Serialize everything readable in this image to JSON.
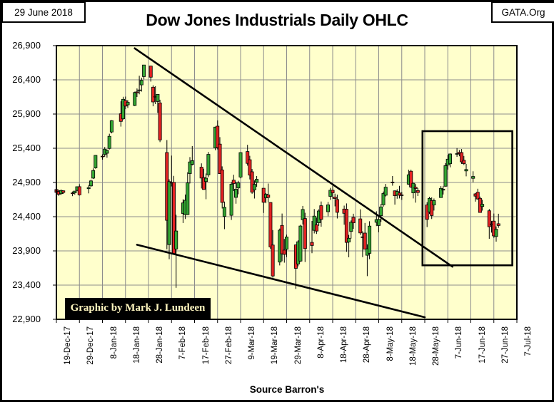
{
  "header": {
    "date_label": "29 June 2018",
    "site_label": "GATA.Org",
    "title": "Dow Jones Industrials Daily OHLC"
  },
  "footer": {
    "source": "Source Barron's"
  },
  "watermark": "Graphic by Mark J. Lundeen",
  "colors": {
    "plot_bg": "#FFFFCC",
    "up_candle": "#33A532",
    "down_candle": "#E32222",
    "wick": "#000000",
    "grid": "#8C8C8C",
    "axis": "#000000",
    "trendline": "#000000",
    "credit_bg": "#000000",
    "credit_text": "#FFF6BF"
  },
  "chart_data": {
    "type": "ohlc-candlestick",
    "title": "Dow Jones Industrials Daily OHLC",
    "grid": true,
    "y_axis": {
      "min": 22900,
      "max": 26900,
      "step": 500,
      "tick_labels": [
        "26,900",
        "26,400",
        "25,900",
        "25,400",
        "24,900",
        "24,400",
        "23,900",
        "23,400",
        "22,900"
      ]
    },
    "x_axis": {
      "start_date": "2017-12-19",
      "end_date": "2018-07-07",
      "tick_dates": [
        "2017-12-19",
        "2017-12-29",
        "2018-01-08",
        "2018-01-18",
        "2018-01-28",
        "2018-02-07",
        "2018-02-17",
        "2018-02-27",
        "2018-03-09",
        "2018-03-19",
        "2018-03-29",
        "2018-04-08",
        "2018-04-18",
        "2018-04-28",
        "2018-05-08",
        "2018-05-18",
        "2018-05-28",
        "2018-06-07",
        "2018-06-17",
        "2018-06-27",
        "2018-07-07"
      ],
      "tick_labels": [
        "19-Dec-17",
        "29-Dec-17",
        "8-Jan-18",
        "18-Jan-18",
        "28-Jan-18",
        "7-Feb-18",
        "17-Feb-18",
        "27-Feb-18",
        "9-Mar-18",
        "19-Mar-18",
        "29-Mar-18",
        "8-Apr-18",
        "18-Apr-18",
        "28-Apr-18",
        "8-May-18",
        "18-May-18",
        "28-May-18",
        "7-Jun-18",
        "17-Jun-18",
        "27-Jun-18",
        "7-Jul-18"
      ]
    },
    "series_format": [
      "date",
      "open",
      "high",
      "low",
      "close"
    ],
    "series": [
      [
        "2017-12-19",
        24797,
        24860,
        24710,
        24755
      ],
      [
        "2017-12-20",
        24770,
        24792,
        24704,
        24727
      ],
      [
        "2017-12-21",
        24736,
        24798,
        24718,
        24782
      ],
      [
        "2017-12-22",
        24778,
        24784,
        24732,
        24754
      ],
      [
        "2017-12-26",
        24747,
        24768,
        24700,
        24746
      ],
      [
        "2017-12-27",
        24748,
        24775,
        24723,
        24774
      ],
      [
        "2017-12-28",
        24784,
        24843,
        24773,
        24837
      ],
      [
        "2017-12-29",
        24839,
        24874,
        24709,
        24719
      ],
      [
        "2018-01-02",
        24809,
        24864,
        24741,
        24824
      ],
      [
        "2018-01-03",
        24850,
        24941,
        24835,
        24923
      ],
      [
        "2018-01-04",
        24964,
        25106,
        24952,
        25075
      ],
      [
        "2018-01-05",
        25114,
        25300,
        25101,
        25296
      ],
      [
        "2018-01-08",
        25284,
        25311,
        25233,
        25283
      ],
      [
        "2018-01-09",
        25308,
        25418,
        25275,
        25386
      ],
      [
        "2018-01-10",
        25327,
        25381,
        25261,
        25369
      ],
      [
        "2018-01-11",
        25397,
        25612,
        25382,
        25575
      ],
      [
        "2018-01-12",
        25637,
        25810,
        25618,
        25803
      ],
      [
        "2018-01-16",
        25904,
        26086,
        25717,
        25793
      ],
      [
        "2018-01-17",
        25831,
        26153,
        25819,
        26116
      ],
      [
        "2018-01-18",
        26096,
        26155,
        25971,
        26017
      ],
      [
        "2018-01-19",
        26034,
        26102,
        25989,
        26072
      ],
      [
        "2018-01-22",
        26025,
        26227,
        26017,
        26215
      ],
      [
        "2018-01-23",
        26224,
        26274,
        26150,
        26211
      ],
      [
        "2018-01-24",
        26243,
        26459,
        26189,
        26252
      ],
      [
        "2018-01-25",
        26326,
        26430,
        26228,
        26393
      ],
      [
        "2018-01-26",
        26448,
        26617,
        26406,
        26617
      ],
      [
        "2018-01-29",
        26601,
        26606,
        26374,
        26439
      ],
      [
        "2018-01-30",
        26293,
        26320,
        26014,
        26077
      ],
      [
        "2018-01-31",
        26158,
        26306,
        26046,
        26149
      ],
      [
        "2018-02-01",
        26083,
        26190,
        25916,
        26187
      ],
      [
        "2018-02-02",
        26062,
        26109,
        25490,
        25521
      ],
      [
        "2018-02-05",
        25337,
        25520,
        23924,
        24346
      ],
      [
        "2018-02-06",
        23992,
        24946,
        23779,
        24913
      ],
      [
        "2018-02-07",
        24902,
        25293,
        24842,
        24893
      ],
      [
        "2018-02-08",
        24902,
        24996,
        23849,
        23860
      ],
      [
        "2018-02-09",
        23929,
        24428,
        23360,
        24191
      ],
      [
        "2018-02-12",
        24447,
        24655,
        24307,
        24601
      ],
      [
        "2018-02-13",
        24430,
        24724,
        24366,
        24640
      ],
      [
        "2018-02-14",
        24430,
        25049,
        24424,
        24894
      ],
      [
        "2018-02-15",
        25030,
        25271,
        24885,
        25200
      ],
      [
        "2018-02-16",
        25165,
        25432,
        25149,
        25219
      ],
      [
        "2018-02-20",
        25124,
        25179,
        24812,
        24965
      ],
      [
        "2018-02-21",
        24972,
        25101,
        24793,
        24798
      ],
      [
        "2018-02-22",
        24913,
        25031,
        24655,
        24962
      ],
      [
        "2018-02-23",
        25011,
        25346,
        24978,
        25310
      ],
      [
        "2018-02-26",
        25406,
        25715,
        25372,
        25709
      ],
      [
        "2018-02-27",
        25723,
        25807,
        25383,
        25410
      ],
      [
        "2018-02-28",
        25460,
        25562,
        25026,
        25029
      ],
      [
        "2018-03-01",
        25083,
        25135,
        24520,
        24608
      ],
      [
        "2018-03-02",
        24404,
        24621,
        24218,
        24538
      ],
      [
        "2018-03-05",
        24420,
        24907,
        24352,
        24875
      ],
      [
        "2018-03-06",
        24933,
        25012,
        24775,
        24884
      ],
      [
        "2018-03-07",
        24682,
        24911,
        24590,
        24801
      ],
      [
        "2018-03-08",
        24820,
        24924,
        24727,
        24895
      ],
      [
        "2018-03-09",
        24979,
        25340,
        24960,
        25336
      ],
      [
        "2018-03-12",
        25352,
        25450,
        25146,
        25179
      ],
      [
        "2018-03-13",
        25232,
        25290,
        24945,
        25007
      ],
      [
        "2018-03-14",
        25056,
        25097,
        24734,
        24758
      ],
      [
        "2018-03-15",
        24792,
        24930,
        24666,
        24873
      ],
      [
        "2018-03-16",
        24900,
        24994,
        24837,
        24947
      ],
      [
        "2018-03-19",
        24816,
        24816,
        24454,
        24611
      ],
      [
        "2018-03-20",
        24676,
        24744,
        24597,
        24727
      ],
      [
        "2018-03-21",
        24718,
        24884,
        24609,
        24682
      ],
      [
        "2018-03-22",
        24607,
        24612,
        23928,
        23957
      ],
      [
        "2018-03-23",
        23985,
        24204,
        23509,
        23533
      ],
      [
        "2018-03-26",
        23736,
        24226,
        23688,
        24203
      ],
      [
        "2018-03-27",
        24272,
        24446,
        23749,
        23857
      ],
      [
        "2018-03-28",
        23911,
        24075,
        23728,
        23848
      ],
      [
        "2018-03-29",
        23924,
        24139,
        23808,
        24103
      ],
      [
        "2018-04-02",
        23987,
        23993,
        23344,
        23644
      ],
      [
        "2018-04-03",
        23709,
        24055,
        23674,
        24033
      ],
      [
        "2018-04-04",
        23751,
        24281,
        23741,
        24264
      ],
      [
        "2018-04-05",
        24355,
        24557,
        24285,
        24505
      ],
      [
        "2018-04-06",
        24373,
        24457,
        23738,
        23933
      ],
      [
        "2018-04-09",
        24024,
        24338,
        23866,
        23979
      ],
      [
        "2018-04-10",
        24200,
        24511,
        24155,
        24408
      ],
      [
        "2018-04-11",
        24281,
        24388,
        24148,
        24189
      ],
      [
        "2018-04-12",
        24311,
        24508,
        24268,
        24483
      ],
      [
        "2018-04-13",
        24560,
        24622,
        24253,
        24360
      ],
      [
        "2018-04-16",
        24473,
        24616,
        24406,
        24573
      ],
      [
        "2018-04-17",
        24696,
        24821,
        24646,
        24786
      ],
      [
        "2018-04-18",
        24786,
        24853,
        24664,
        24748
      ],
      [
        "2018-04-19",
        24685,
        24736,
        24551,
        24665
      ],
      [
        "2018-04-20",
        24651,
        24722,
        24374,
        24463
      ],
      [
        "2018-04-23",
        24511,
        24561,
        24282,
        24449
      ],
      [
        "2018-04-24",
        24509,
        24594,
        23886,
        24024
      ],
      [
        "2018-04-25",
        24030,
        24134,
        23806,
        24084
      ],
      [
        "2018-04-26",
        24185,
        24346,
        24080,
        24322
      ],
      [
        "2018-04-27",
        24390,
        24443,
        24223,
        24311
      ],
      [
        "2018-04-30",
        24368,
        24507,
        24133,
        24163
      ],
      [
        "2018-05-01",
        24105,
        24186,
        23808,
        24099
      ],
      [
        "2018-05-02",
        24160,
        24308,
        23921,
        23925
      ],
      [
        "2018-05-03",
        23836,
        23996,
        23531,
        23930
      ],
      [
        "2018-05-04",
        23865,
        24333,
        23779,
        24263
      ],
      [
        "2018-05-07",
        24317,
        24479,
        24263,
        24357
      ],
      [
        "2018-05-08",
        24270,
        24412,
        24172,
        24360
      ],
      [
        "2018-05-09",
        24415,
        24586,
        24323,
        24543
      ],
      [
        "2018-05-10",
        24573,
        24768,
        24547,
        24739
      ],
      [
        "2018-05-11",
        24713,
        24878,
        24696,
        24831
      ],
      [
        "2018-05-14",
        24906,
        24994,
        24853,
        24899
      ],
      [
        "2018-05-15",
        24778,
        24782,
        24576,
        24706
      ],
      [
        "2018-05-16",
        24716,
        24801,
        24662,
        24769
      ],
      [
        "2018-05-17",
        24747,
        24850,
        24667,
        24714
      ],
      [
        "2018-05-18",
        24719,
        24762,
        24646,
        24715
      ],
      [
        "2018-05-21",
        24875,
        25086,
        24868,
        25013
      ],
      [
        "2018-05-22",
        25065,
        25087,
        24822,
        24834
      ],
      [
        "2018-05-23",
        24747,
        24896,
        24667,
        24887
      ],
      [
        "2018-05-24",
        24830,
        24876,
        24605,
        24812
      ],
      [
        "2018-05-25",
        24782,
        24818,
        24702,
        24753
      ],
      [
        "2018-05-29",
        24571,
        24613,
        24248,
        24361
      ],
      [
        "2018-05-30",
        24470,
        24689,
        24440,
        24668
      ],
      [
        "2018-05-31",
        24636,
        24682,
        24366,
        24416
      ],
      [
        "2018-06-01",
        24570,
        24666,
        24490,
        24635
      ],
      [
        "2018-06-04",
        24680,
        24847,
        24680,
        24814
      ],
      [
        "2018-06-05",
        24789,
        24846,
        24724,
        24800
      ],
      [
        "2018-06-06",
        24845,
        25181,
        24841,
        25146
      ],
      [
        "2018-06-07",
        25155,
        25302,
        25089,
        25241
      ],
      [
        "2018-06-08",
        25174,
        25324,
        25121,
        25317
      ],
      [
        "2018-06-11",
        25322,
        25402,
        25274,
        25322
      ],
      [
        "2018-06-12",
        25340,
        25374,
        25283,
        25321
      ],
      [
        "2018-06-13",
        25337,
        25389,
        25171,
        25201
      ],
      [
        "2018-06-14",
        25224,
        25287,
        25155,
        25175
      ],
      [
        "2018-06-15",
        25069,
        25171,
        24990,
        25090
      ],
      [
        "2018-06-18",
        24960,
        25064,
        24903,
        24987
      ],
      [
        "2018-06-19",
        24733,
        24744,
        24620,
        24700
      ],
      [
        "2018-06-20",
        24757,
        24808,
        24649,
        24658
      ],
      [
        "2018-06-21",
        24668,
        24694,
        24461,
        24462
      ],
      [
        "2018-06-22",
        24549,
        24648,
        24489,
        24581
      ],
      [
        "2018-06-25",
        24486,
        24512,
        24077,
        24253
      ],
      [
        "2018-06-26",
        24294,
        24339,
        24167,
        24283
      ],
      [
        "2018-06-27",
        24335,
        24446,
        24091,
        24118
      ],
      [
        "2018-06-28",
        24110,
        24258,
        24035,
        24216
      ],
      [
        "2018-06-29",
        24297,
        24443,
        24236,
        24271
      ]
    ],
    "annotations": {
      "trendlines": [
        {
          "name": "upper-downtrend-line",
          "from": {
            "date": "2018-01-22",
            "value": 26860
          },
          "to": {
            "date": "2018-06-09",
            "value": 23670
          }
        },
        {
          "name": "lower-support-line",
          "from": {
            "date": "2018-01-23",
            "value": 23990
          },
          "to": {
            "date": "2018-05-28",
            "value": 22930
          }
        }
      ],
      "highlight_box": {
        "from_date": "2018-05-27",
        "to_date": "2018-07-05",
        "top_value": 25650,
        "bottom_value": 23690
      }
    }
  }
}
